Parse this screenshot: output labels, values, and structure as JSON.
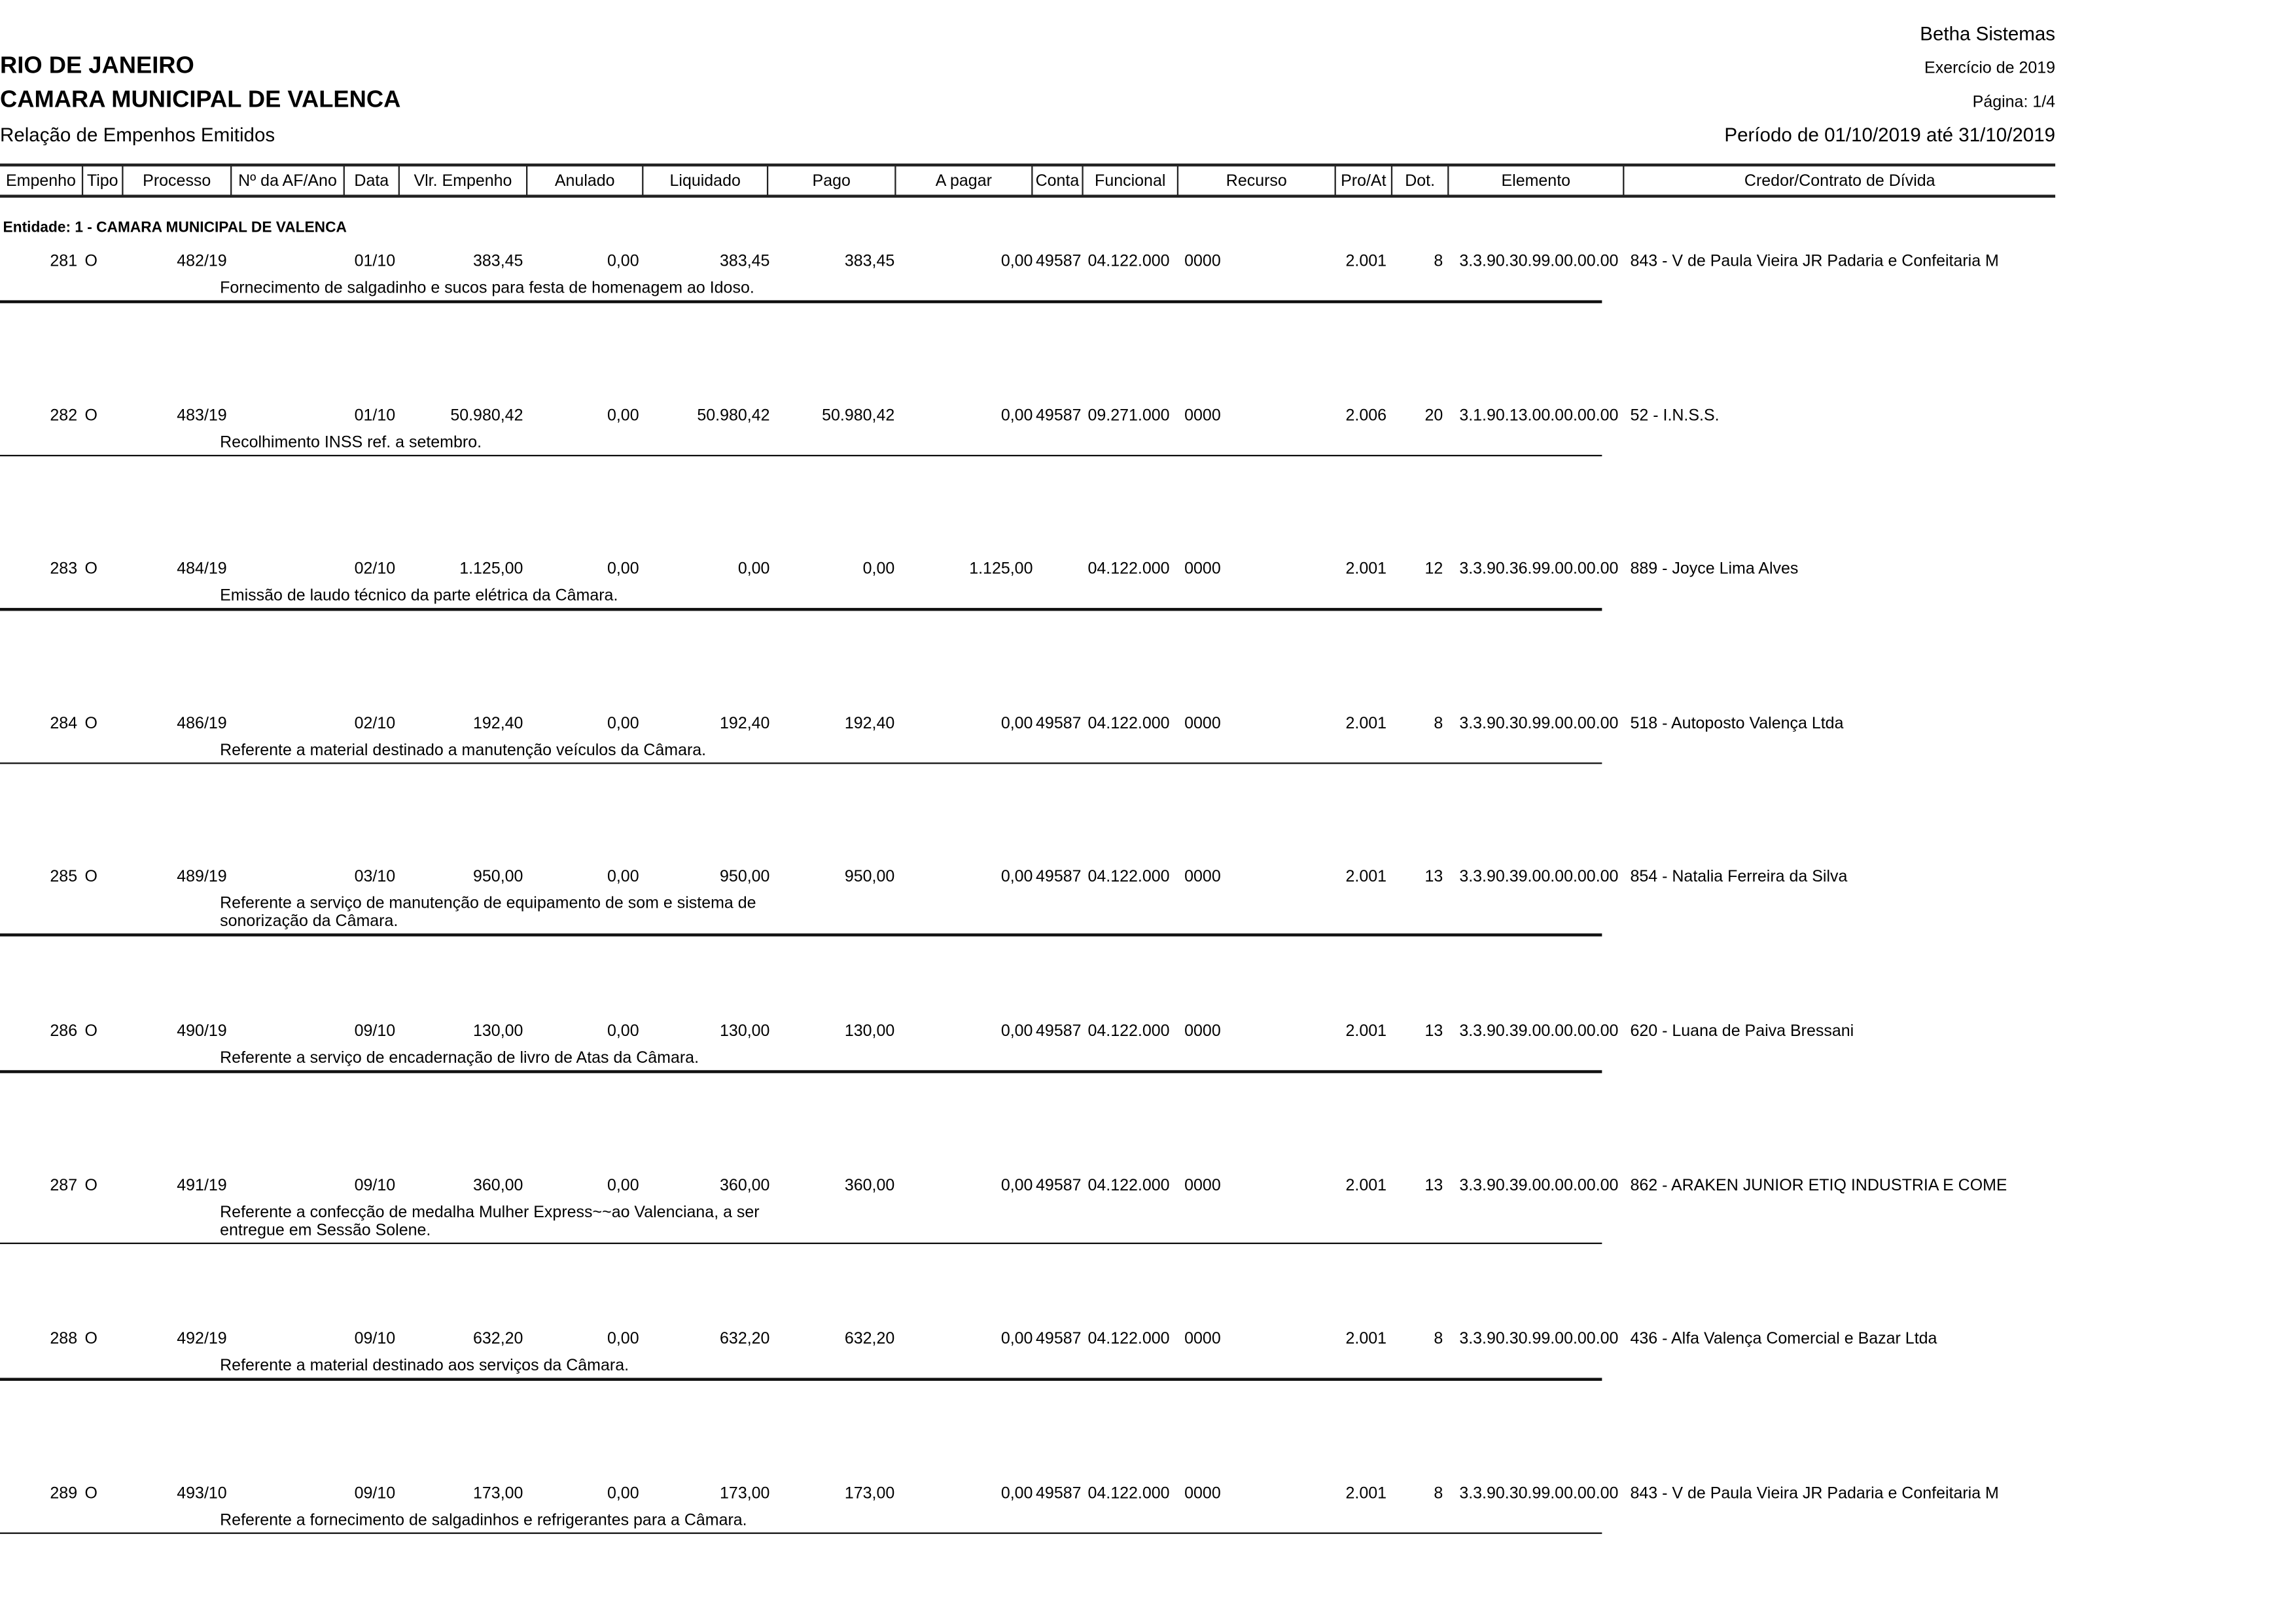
{
  "header": {
    "vendor": "Betha Sistemas",
    "state": "RIO DE JANEIRO",
    "entity_name": "CAMARA MUNICIPAL DE VALENCA",
    "report_title": "Relação de Empenhos Emitidos",
    "exercise": "Exercício de 2019",
    "page": "Página: 1/4",
    "period": "Período de 01/10/2019 até 31/10/2019"
  },
  "columns": [
    "Empenho",
    "Tipo",
    "Processo",
    "Nº da AF/Ano",
    "Data",
    "Vlr. Empenho",
    "Anulado",
    "Liquidado",
    "Pago",
    "A pagar",
    "Conta",
    "Funcional",
    "Recurso",
    "Pro/At",
    "Dot.",
    "Elemento",
    "Credor/Contrato de Dívida"
  ],
  "entity_label": "Entidade: 1 - CAMARA MUNICIPAL DE VALENCA",
  "rows": [
    {
      "empenho": "281",
      "tipo": "O",
      "processo": "482/19",
      "af": "",
      "data": "01/10",
      "vlr": "383,45",
      "anulado": "0,00",
      "liquidado": "383,45",
      "pago": "383,45",
      "apagar": "0,00",
      "conta": "49587",
      "funcional": "04.122.000",
      "recurso": "0000",
      "proat": "2.001",
      "dot": "8",
      "elemento": "3.3.90.30.99.00.00.00",
      "credor": "843 - V de Paula Vieira JR Padaria e Confeitaria M",
      "descricao": [
        "Fornecimento de salgadinho e sucos para festa de homenagem ao Idoso."
      ]
    },
    {
      "empenho": "282",
      "tipo": "O",
      "processo": "483/19",
      "af": "",
      "data": "01/10",
      "vlr": "50.980,42",
      "anulado": "0,00",
      "liquidado": "50.980,42",
      "pago": "50.980,42",
      "apagar": "0,00",
      "conta": "49587",
      "funcional": "09.271.000",
      "recurso": "0000",
      "proat": "2.006",
      "dot": "20",
      "elemento": "3.1.90.13.00.00.00.00",
      "credor": "52 - I.N.S.S.",
      "descricao": [
        "Recolhimento INSS ref. a setembro."
      ]
    },
    {
      "empenho": "283",
      "tipo": "O",
      "processo": "484/19",
      "af": "",
      "data": "02/10",
      "vlr": "1.125,00",
      "anulado": "0,00",
      "liquidado": "0,00",
      "pago": "0,00",
      "apagar": "1.125,00",
      "conta": "",
      "funcional": "04.122.000",
      "recurso": "0000",
      "proat": "2.001",
      "dot": "12",
      "elemento": "3.3.90.36.99.00.00.00",
      "credor": "889 - Joyce Lima Alves",
      "descricao": [
        "Emissão de laudo técnico da parte elétrica da Câmara."
      ]
    },
    {
      "empenho": "284",
      "tipo": "O",
      "processo": "486/19",
      "af": "",
      "data": "02/10",
      "vlr": "192,40",
      "anulado": "0,00",
      "liquidado": "192,40",
      "pago": "192,40",
      "apagar": "0,00",
      "conta": "49587",
      "funcional": "04.122.000",
      "recurso": "0000",
      "proat": "2.001",
      "dot": "8",
      "elemento": "3.3.90.30.99.00.00.00",
      "credor": "518 - Autoposto Valença Ltda",
      "descricao": [
        "Referente a material destinado a manutenção veículos da Câmara."
      ]
    },
    {
      "empenho": "285",
      "tipo": "O",
      "processo": "489/19",
      "af": "",
      "data": "03/10",
      "vlr": "950,00",
      "anulado": "0,00",
      "liquidado": "950,00",
      "pago": "950,00",
      "apagar": "0,00",
      "conta": "49587",
      "funcional": "04.122.000",
      "recurso": "0000",
      "proat": "2.001",
      "dot": "13",
      "elemento": "3.3.90.39.00.00.00.00",
      "credor": "854 - Natalia Ferreira da Silva",
      "descricao": [
        "Referente a serviço de manutenção de equipamento de som e sistema de",
        "sonorização da Câmara."
      ]
    },
    {
      "empenho": "286",
      "tipo": "O",
      "processo": "490/19",
      "af": "",
      "data": "09/10",
      "vlr": "130,00",
      "anulado": "0,00",
      "liquidado": "130,00",
      "pago": "130,00",
      "apagar": "0,00",
      "conta": "49587",
      "funcional": "04.122.000",
      "recurso": "0000",
      "proat": "2.001",
      "dot": "13",
      "elemento": "3.3.90.39.00.00.00.00",
      "credor": "620 - Luana de Paiva Bressani",
      "descricao": [
        "Referente a serviço de encadernação de livro de Atas da Câmara."
      ]
    },
    {
      "empenho": "287",
      "tipo": "O",
      "processo": "491/19",
      "af": "",
      "data": "09/10",
      "vlr": "360,00",
      "anulado": "0,00",
      "liquidado": "360,00",
      "pago": "360,00",
      "apagar": "0,00",
      "conta": "49587",
      "funcional": "04.122.000",
      "recurso": "0000",
      "proat": "2.001",
      "dot": "13",
      "elemento": "3.3.90.39.00.00.00.00",
      "credor": "862 - ARAKEN JUNIOR ETIQ INDUSTRIA E COME",
      "descricao": [
        "Referente a confecção de medalha Mulher Express~~ao Valenciana, a ser",
        "entregue em Sessão Solene."
      ]
    },
    {
      "empenho": "288",
      "tipo": "O",
      "processo": "492/19",
      "af": "",
      "data": "09/10",
      "vlr": "632,20",
      "anulado": "0,00",
      "liquidado": "632,20",
      "pago": "632,20",
      "apagar": "0,00",
      "conta": "49587",
      "funcional": "04.122.000",
      "recurso": "0000",
      "proat": "2.001",
      "dot": "8",
      "elemento": "3.3.90.30.99.00.00.00",
      "credor": "436 - Alfa Valença Comercial e Bazar Ltda",
      "descricao": [
        "Referente a material destinado aos serviços da Câmara."
      ]
    },
    {
      "empenho": "289",
      "tipo": "O",
      "processo": "493/10",
      "af": "",
      "data": "09/10",
      "vlr": "173,00",
      "anulado": "0,00",
      "liquidado": "173,00",
      "pago": "173,00",
      "apagar": "0,00",
      "conta": "49587",
      "funcional": "04.122.000",
      "recurso": "0000",
      "proat": "2.001",
      "dot": "8",
      "elemento": "3.3.90.30.99.00.00.00",
      "credor": "843 - V de Paula Vieira JR Padaria e Confeitaria M",
      "descricao": [
        "Referente a fornecimento de salgadinhos e refrigerantes para a Câmara."
      ]
    }
  ]
}
